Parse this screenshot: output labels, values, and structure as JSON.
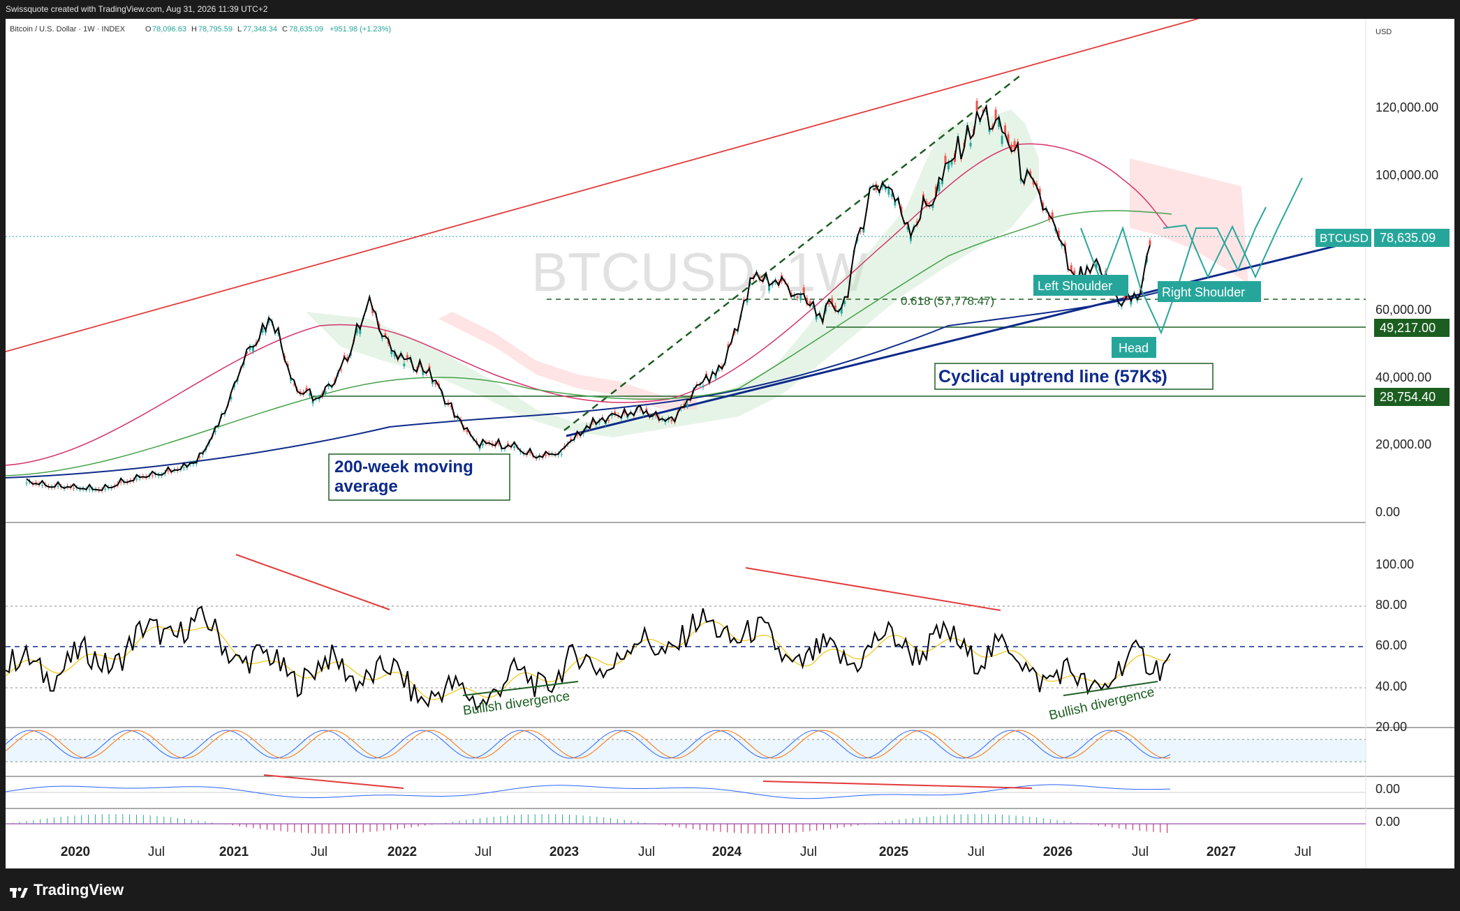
{
  "header": {
    "attribution": "Swissquote created with TradingView.com, Aug 31, 2026 11:39 UTC+2"
  },
  "legend": {
    "symbol": "Bitcoin / U.S. Dollar · 1W · INDEX",
    "open_label": "O",
    "open": "78,096.63",
    "high_label": "H",
    "high": "78,795.59",
    "low_label": "L",
    "low": "77,348.34",
    "close_label": "C",
    "close": "78,635.09",
    "change": "+951.98 (+1.23%)"
  },
  "watermark": "BTCUSD, 1W",
  "currency": "USD",
  "price_axis": {
    "ticks": [
      "120,000.00",
      "100,000.00",
      "60,000.00",
      "40,000.00",
      "20,000.00",
      "0.00"
    ],
    "badges": [
      {
        "text": "78,635.09",
        "bg": "#26a69a"
      },
      {
        "text": "49,217.00",
        "bg": "#1b5e20"
      },
      {
        "text": "28,754.40",
        "bg": "#1b5e20"
      }
    ],
    "ticker_badge": "BTCUSD"
  },
  "rsi_axis": {
    "ticks": [
      "100.00",
      "80.00",
      "60.00",
      "40.00",
      "20.00"
    ]
  },
  "macd_axis": {
    "ticks": [
      "0.00"
    ]
  },
  "ao_axis": {
    "ticks": [
      "0.00"
    ]
  },
  "time_axis": {
    "labels": [
      "2020",
      "Jul",
      "2021",
      "Jul",
      "2022",
      "Jul",
      "2023",
      "Jul",
      "2024",
      "Jul",
      "2025",
      "Jul",
      "2026",
      "Jul",
      "2027",
      "Jul"
    ]
  },
  "annotations": {
    "ma200": "200-week moving average",
    "ma200_line1": "200-week moving",
    "ma200_line2": "average",
    "uptrend": "Cyclical uptrend line (57K$)",
    "fib": "0.618 (57,778.47)",
    "left_shoulder": "Left Shoulder",
    "head": "Head",
    "right_shoulder": "Right Shoulder",
    "div1": "Bullish divergence",
    "div2": "Bullish divergence"
  },
  "footer": {
    "brand": "TradingView"
  },
  "colors": {
    "price": "#000000",
    "ma200": "#0d2a8a",
    "channel": "#e23a3a",
    "green_level": "#1b5e20",
    "teal": "#26a69a",
    "rsi_ma": "#f1c40f"
  },
  "chart_data": [
    {
      "type": "line",
      "title": "Bitcoin / U.S. Dollar · 1W · INDEX",
      "x": [
        "2020",
        "Jul 2020",
        "2021",
        "Jul 2021",
        "2022",
        "Jul 2022",
        "2023",
        "Jul 2023",
        "2024",
        "Jul 2024",
        "2025",
        "Jul 2025",
        "2026",
        "Jul 2026"
      ],
      "series": [
        {
          "name": "BTCUSD",
          "values": [
            7200,
            9200,
            29000,
            35000,
            46000,
            21000,
            16500,
            29500,
            42500,
            64000,
            94000,
            107000,
            88000,
            67000
          ]
        }
      ],
      "ylim": [
        0,
        130000
      ],
      "levels": [
        78635.09,
        57778.47,
        49217.0,
        28754.4
      ]
    },
    {
      "type": "line",
      "x": [
        "2020",
        "Jul 2020",
        "2021",
        "Jul 2021",
        "2022",
        "Jul 2022",
        "2023",
        "Jul 2023",
        "2024",
        "Jul 2024",
        "2025",
        "Jul 2025",
        "2026",
        "Jul 2026"
      ],
      "series": [
        {
          "values": [
            48,
            52,
            72,
            48,
            48,
            34,
            45,
            57,
            70,
            52,
            62,
            58,
            40,
            57
          ]
        }
      ],
      "ylim": [
        0,
        100
      ]
    }
  ]
}
